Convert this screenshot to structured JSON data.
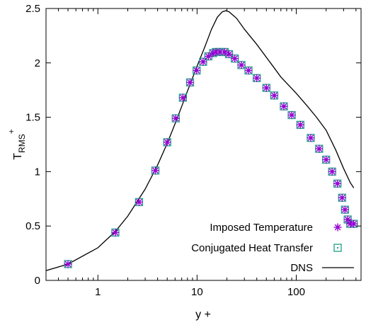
{
  "chart_data": {
    "type": "scatter",
    "xlabel": "y +",
    "ylabel": {
      "main": "T",
      "sub": "RMS",
      "sup": "+"
    },
    "xscale": "log",
    "xlim": [
      0.3,
      450
    ],
    "ylim": [
      0,
      2.5
    ],
    "x_ticks": [
      1,
      10,
      100
    ],
    "x_tick_labels": [
      "1",
      "10",
      "100"
    ],
    "y_ticks": [
      0,
      0.5,
      1,
      1.5,
      2,
      2.5
    ],
    "y_tick_labels": [
      "0",
      "0.5",
      "1",
      "1.5",
      "2",
      "2.5"
    ],
    "legend_position": "bottom-right",
    "grid": false,
    "series": [
      {
        "name": "Imposed Temperature",
        "marker": "asterisk",
        "color": "#9400d3",
        "points": [
          [
            0.5,
            0.15
          ],
          [
            1.5,
            0.44
          ],
          [
            2.6,
            0.72
          ],
          [
            3.8,
            1.01
          ],
          [
            5.0,
            1.27
          ],
          [
            6.1,
            1.49
          ],
          [
            7.2,
            1.68
          ],
          [
            8.5,
            1.82
          ],
          [
            9.9,
            1.93
          ],
          [
            11.5,
            2.01
          ],
          [
            13.0,
            2.06
          ],
          [
            14.5,
            2.09
          ],
          [
            15.5,
            2.1
          ],
          [
            17.0,
            2.1
          ],
          [
            19.0,
            2.1
          ],
          [
            21.0,
            2.08
          ],
          [
            24.0,
            2.04
          ],
          [
            28.0,
            1.98
          ],
          [
            33.0,
            1.93
          ],
          [
            40.0,
            1.86
          ],
          [
            50.0,
            1.77
          ],
          [
            60.0,
            1.7
          ],
          [
            75.0,
            1.6
          ],
          [
            90.0,
            1.52
          ],
          [
            110.0,
            1.43
          ],
          [
            140.0,
            1.31
          ],
          [
            170.0,
            1.21
          ],
          [
            200.0,
            1.11
          ],
          [
            230.0,
            1.0
          ],
          [
            260.0,
            0.89
          ],
          [
            290.0,
            0.76
          ],
          [
            310.0,
            0.65
          ],
          [
            330.0,
            0.56
          ],
          [
            350.0,
            0.52
          ],
          [
            380.0,
            0.52
          ]
        ]
      },
      {
        "name": "Conjugated Heat Transfer",
        "marker": "square-dot",
        "color": "#1f9e89",
        "points": [
          [
            0.5,
            0.15
          ],
          [
            1.5,
            0.44
          ],
          [
            2.6,
            0.72
          ],
          [
            3.8,
            1.01
          ],
          [
            5.0,
            1.27
          ],
          [
            6.1,
            1.49
          ],
          [
            7.2,
            1.68
          ],
          [
            8.5,
            1.82
          ],
          [
            9.9,
            1.93
          ],
          [
            11.5,
            2.01
          ],
          [
            13.0,
            2.06
          ],
          [
            14.5,
            2.09
          ],
          [
            15.5,
            2.1
          ],
          [
            17.0,
            2.1
          ],
          [
            19.0,
            2.1
          ],
          [
            21.0,
            2.08
          ],
          [
            24.0,
            2.04
          ],
          [
            28.0,
            1.98
          ],
          [
            33.0,
            1.93
          ],
          [
            40.0,
            1.86
          ],
          [
            50.0,
            1.77
          ],
          [
            60.0,
            1.7
          ],
          [
            75.0,
            1.6
          ],
          [
            90.0,
            1.52
          ],
          [
            110.0,
            1.43
          ],
          [
            140.0,
            1.31
          ],
          [
            170.0,
            1.21
          ],
          [
            200.0,
            1.11
          ],
          [
            230.0,
            1.0
          ],
          [
            260.0,
            0.89
          ],
          [
            290.0,
            0.76
          ],
          [
            310.0,
            0.65
          ],
          [
            330.0,
            0.56
          ],
          [
            350.0,
            0.52
          ],
          [
            380.0,
            0.52
          ]
        ]
      },
      {
        "name": "DNS",
        "marker": "line",
        "color": "#000000",
        "points": [
          [
            0.3,
            0.09
          ],
          [
            0.5,
            0.15
          ],
          [
            1.0,
            0.3
          ],
          [
            1.5,
            0.45
          ],
          [
            2.0,
            0.59
          ],
          [
            3.0,
            0.84
          ],
          [
            4.0,
            1.06
          ],
          [
            5.0,
            1.26
          ],
          [
            6.0,
            1.44
          ],
          [
            7.0,
            1.6
          ],
          [
            8.0,
            1.74
          ],
          [
            10.0,
            1.97
          ],
          [
            12.0,
            2.15
          ],
          [
            14.0,
            2.31
          ],
          [
            16.0,
            2.42
          ],
          [
            18.0,
            2.47
          ],
          [
            19.5,
            2.48
          ],
          [
            21.0,
            2.47
          ],
          [
            25.0,
            2.41
          ],
          [
            30.0,
            2.31
          ],
          [
            40.0,
            2.17
          ],
          [
            55.0,
            2.0
          ],
          [
            70.0,
            1.87
          ],
          [
            100.0,
            1.72
          ],
          [
            130.0,
            1.6
          ],
          [
            160.0,
            1.5
          ],
          [
            200.0,
            1.38
          ],
          [
            250.0,
            1.2
          ],
          [
            300.0,
            1.03
          ],
          [
            350.0,
            0.9
          ],
          [
            380.0,
            0.85
          ]
        ]
      }
    ]
  }
}
